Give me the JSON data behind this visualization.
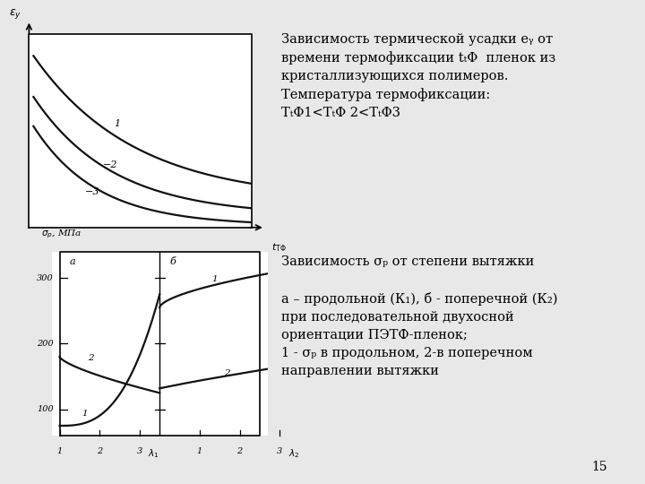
{
  "bg_color": "#e8e8e8",
  "graph_bg": "#ffffff",
  "curve_color": "#111111",
  "page_number": "15",
  "top_text_line1": "Зависимость термической усадки e",
  "top_text_line1b": "y",
  "top_text_rest": " от",
  "text_fontsize": 10.5,
  "label_fontsize": 8.5,
  "curve_lw": 1.6
}
